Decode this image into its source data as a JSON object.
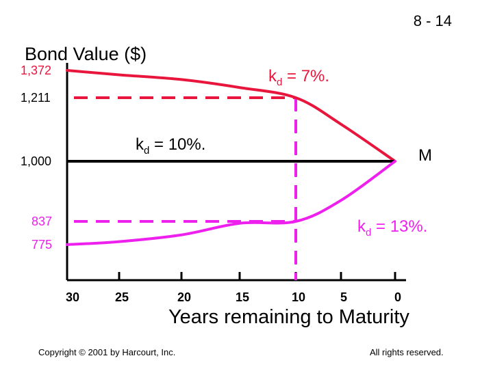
{
  "slide_number": "8 - 14",
  "copyright": "Copyright © 2001 by Harcourt, Inc.",
  "rights": "All rights reserved.",
  "colors": {
    "kd7": "#e8163c",
    "kd13": "#ee20ee",
    "kd10": "#000000",
    "axes": "#000000"
  },
  "chart_data": {
    "type": "line",
    "title": "",
    "ylabel": "Bond Value ($)",
    "xlabel": "Years remaining to Maturity",
    "x_reversed": true,
    "x_ticks": [
      {
        "value": 30,
        "label": "30"
      },
      {
        "value": 25,
        "label": "25"
      },
      {
        "value": 20,
        "label": "20"
      },
      {
        "value": 15,
        "label": "15"
      },
      {
        "value": 10,
        "label": "10"
      },
      {
        "value": 5,
        "label": "5"
      },
      {
        "value": 0,
        "label": "0"
      }
    ],
    "y_ticks": [
      {
        "value": 1372,
        "label": "1,372",
        "color": "#e8163c"
      },
      {
        "value": 1211,
        "label": "1,211",
        "color": "#000000"
      },
      {
        "value": 1000,
        "label": "1,000",
        "color": "#000000"
      },
      {
        "value": 837,
        "label": "837",
        "color": "#ee20ee"
      },
      {
        "value": 775,
        "label": "775",
        "color": "#ee20ee"
      }
    ],
    "series": [
      {
        "key": "kd7",
        "label_main": "k",
        "label_sub": "d",
        "label_tail": " = 7%.",
        "color": "#e8163c",
        "x": [
          30,
          25,
          20,
          15,
          10,
          5,
          0
        ],
        "y": [
          1372,
          1346,
          1318,
          1271,
          1211,
          1123,
          1000
        ]
      },
      {
        "key": "kd10",
        "label_main": "k",
        "label_sub": "d",
        "label_tail": " = 10%.",
        "color": "#000000",
        "x": [
          30,
          0
        ],
        "y": [
          1000,
          1000
        ]
      },
      {
        "key": "kd13",
        "label_main": "k",
        "label_sub": "d",
        "label_tail": " = 13%.",
        "color": "#ee20ee",
        "x": [
          30,
          25,
          20,
          15,
          10,
          5,
          0
        ],
        "y": [
          775,
          783,
          801,
          832,
          837,
          894,
          1000
        ]
      }
    ],
    "reference_lines": [
      {
        "type": "horizontal",
        "y": 1211,
        "x_from": 30,
        "x_to": 10,
        "color": "#e8163c",
        "dashed": true
      },
      {
        "type": "horizontal",
        "y": 837,
        "x_from": 30,
        "x_to": 10,
        "color": "#ee20ee",
        "dashed": true
      },
      {
        "type": "vertical",
        "x": 10,
        "color": "#ee20ee",
        "dashed": true
      }
    ],
    "annotations": [
      {
        "text": "M",
        "at_x": 0,
        "at_y": 1000
      }
    ]
  }
}
